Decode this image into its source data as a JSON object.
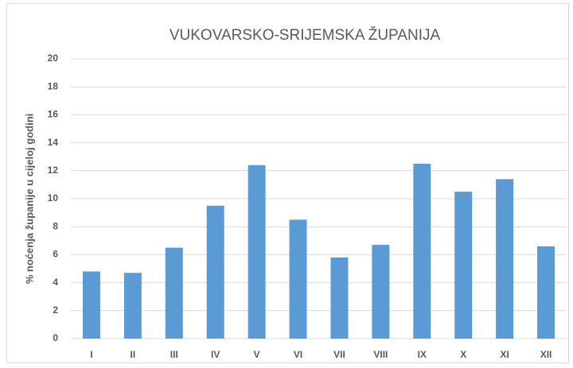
{
  "chart_data": {
    "type": "bar",
    "title": "VUKOVARSKO-SRIJEMSKA ŽUPANIJA",
    "y_label": "% noćenja županije u cijeloj godini",
    "categories": [
      "I",
      "II",
      "III",
      "IV",
      "V",
      "VI",
      "VII",
      "VIII",
      "IX",
      "X",
      "XI",
      "XII"
    ],
    "values": [
      4.8,
      4.7,
      6.5,
      9.5,
      12.4,
      8.5,
      5.8,
      6.7,
      12.5,
      10.5,
      11.4,
      6.6
    ],
    "color": "#5b9bd5",
    "ylim": [
      0,
      20
    ],
    "yticks": [
      0,
      2,
      4,
      6,
      8,
      10,
      12,
      14,
      16,
      18,
      20
    ],
    "grid": true
  }
}
